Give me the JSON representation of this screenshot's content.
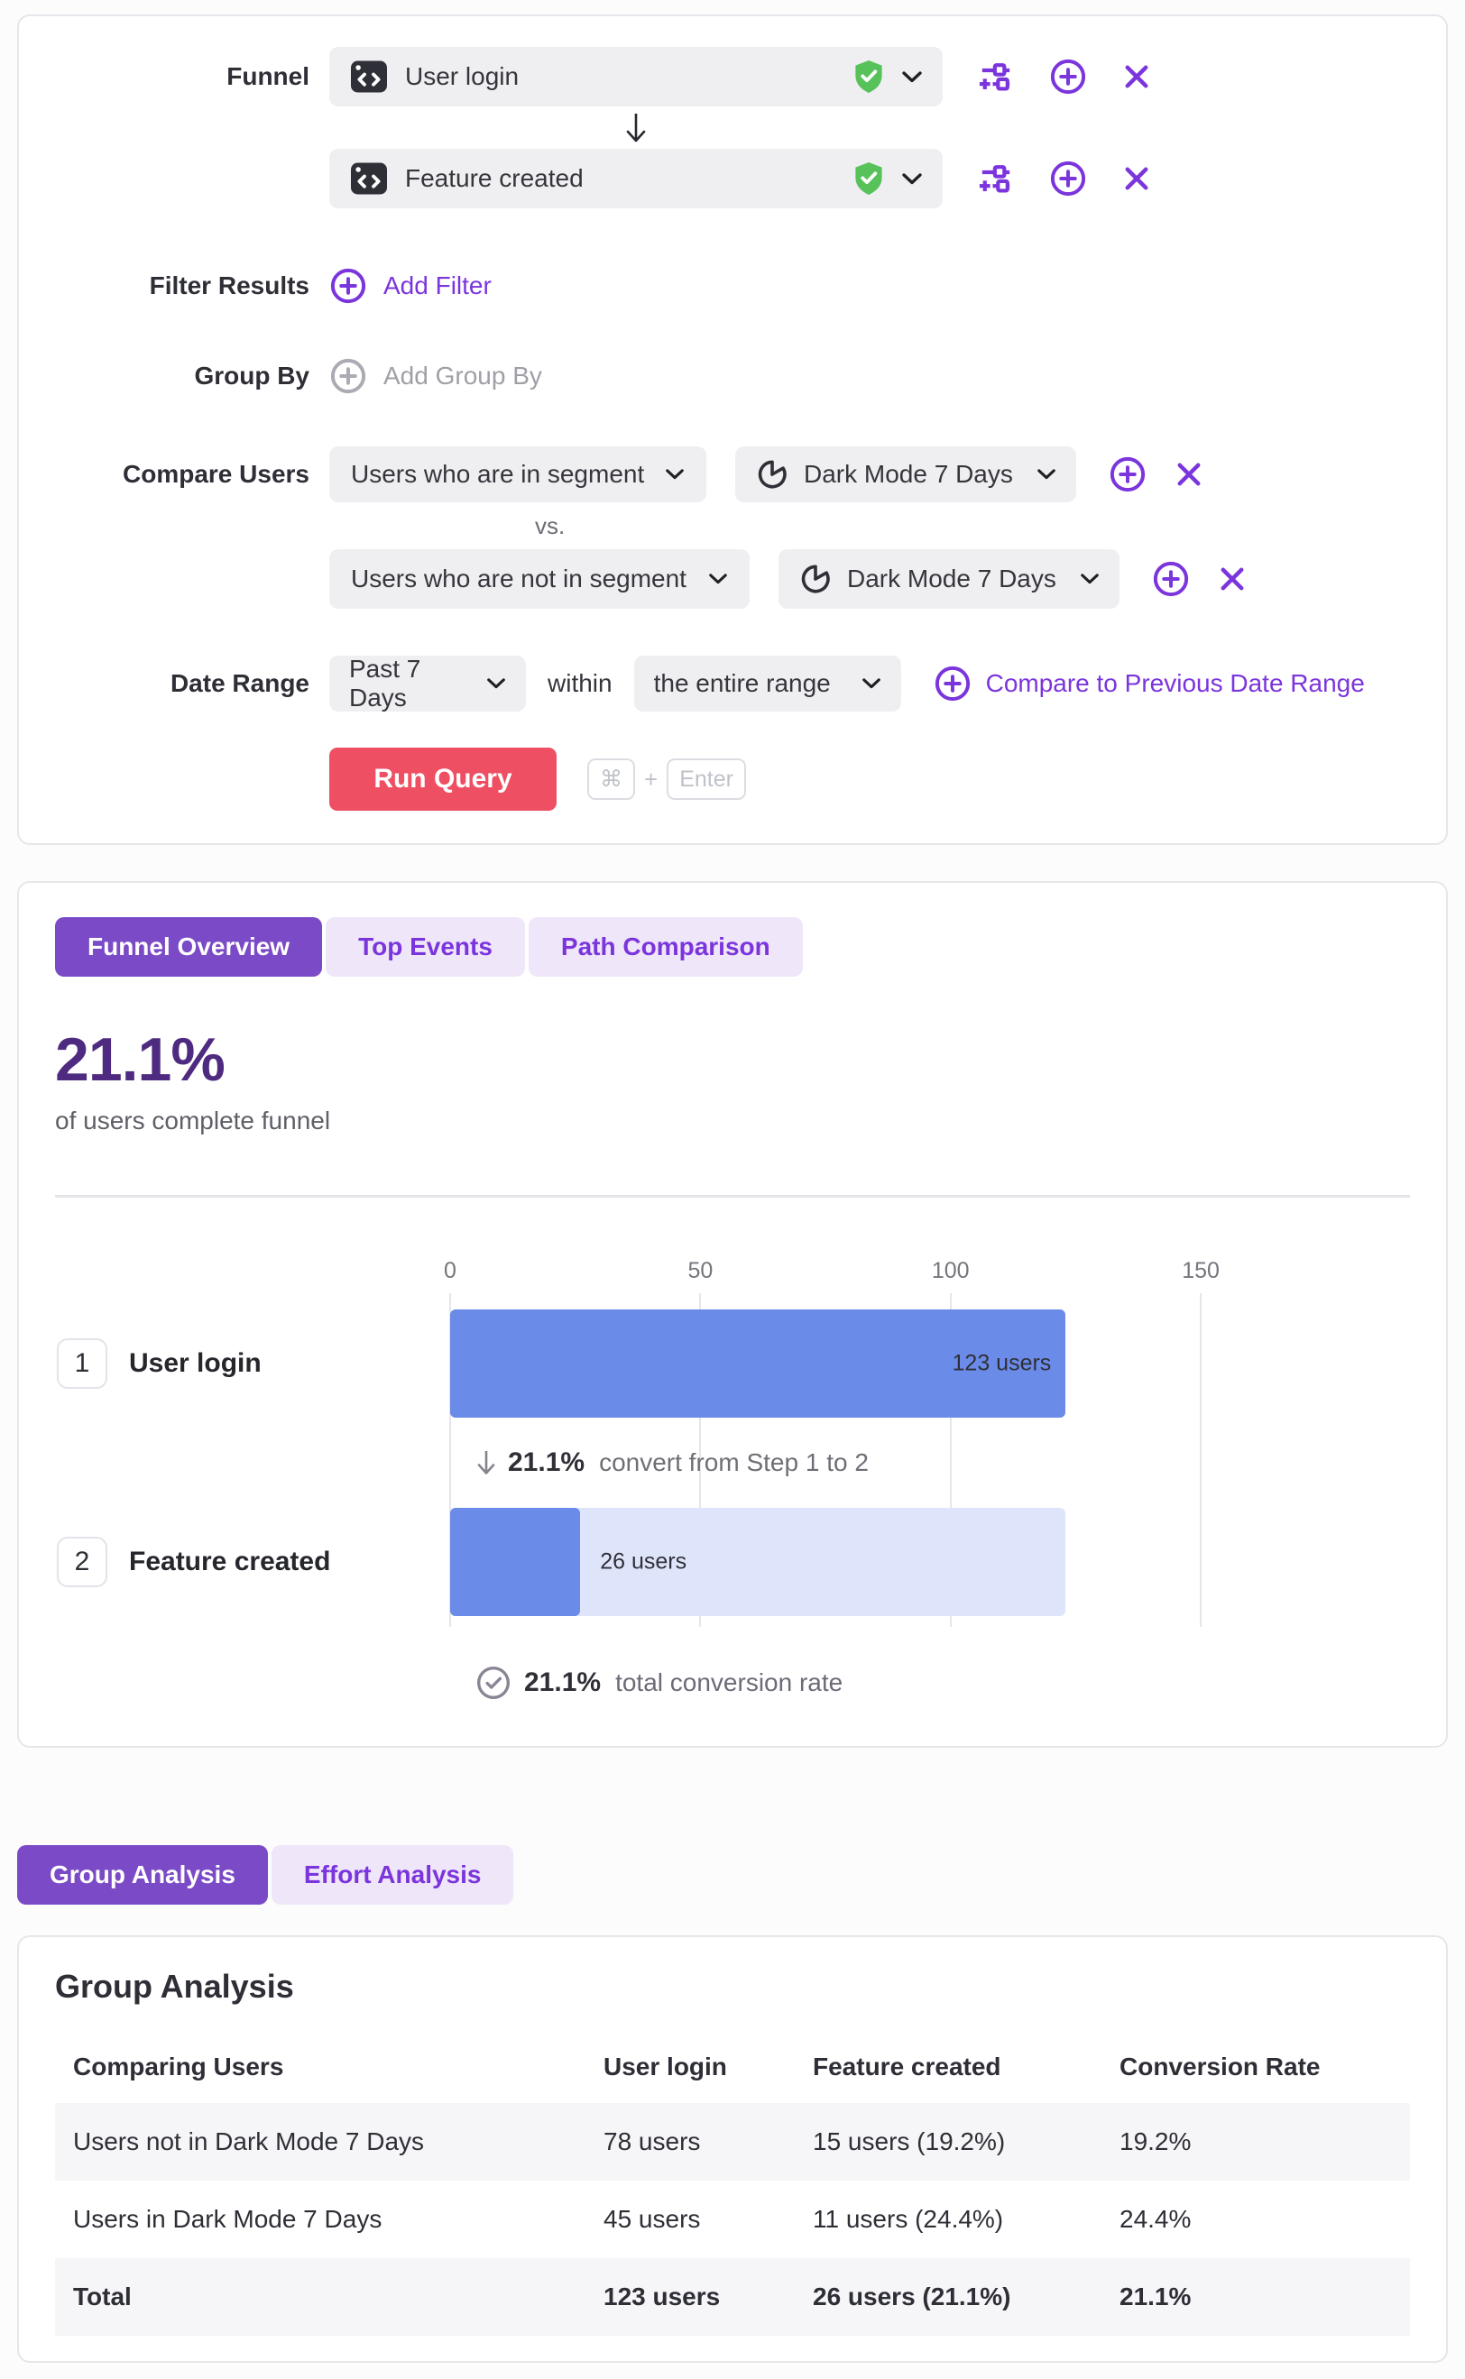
{
  "colors": {
    "accent_purple": "#7B35DC",
    "tab_active_purple": "#7B4AC6",
    "tab_inactive_bg": "#EFE6F9",
    "headline_purple": "#4E2B80",
    "bar_blue": "#6A8BE8",
    "bar_track_blue": "#DEE5FB",
    "run_button_red": "#EE4F63",
    "verified_green": "#57C259",
    "page_bg": "#FCFCFD"
  },
  "query_builder": {
    "funnel_label": "Funnel",
    "steps": [
      {
        "name": "User login"
      },
      {
        "name": "Feature created"
      }
    ],
    "filter_results": {
      "label": "Filter Results",
      "add_label": "Add Filter"
    },
    "group_by": {
      "label": "Group By",
      "add_label": "Add Group By"
    },
    "compare_users": {
      "label": "Compare Users",
      "vs_label": "vs.",
      "rows": [
        {
          "segment_type": "Users who are in segment",
          "segment": "Dark Mode 7 Days"
        },
        {
          "segment_type": "Users who are not in segment",
          "segment": "Dark Mode 7 Days"
        }
      ]
    },
    "date_range": {
      "label": "Date Range",
      "range": "Past 7 Days",
      "within_label": "within",
      "window": "the entire range",
      "compare_link": "Compare to Previous Date Range"
    },
    "run_button_label": "Run Query",
    "shortcut": {
      "meta": "⌘",
      "plus": "+",
      "enter": "Enter"
    }
  },
  "overview": {
    "tabs": [
      {
        "label": "Funnel Overview",
        "active": true
      },
      {
        "label": "Top Events",
        "active": false
      },
      {
        "label": "Path Comparison",
        "active": false
      }
    ],
    "headline": "21.1%",
    "subtext": "of users complete funnel",
    "chart_data": {
      "type": "bar",
      "orientation": "horizontal",
      "categories": [
        "User login",
        "Feature created"
      ],
      "step_numbers": [
        "1",
        "2"
      ],
      "values": [
        123,
        26
      ],
      "value_labels": [
        "123 users",
        "26 users"
      ],
      "ticks": [
        0,
        50,
        100,
        150
      ],
      "xlim": [
        0,
        190
      ],
      "grid": true,
      "legend": false,
      "step_conversion": {
        "pct": "21.1%",
        "text": "convert from Step 1 to 2"
      },
      "total_conversion": {
        "pct": "21.1%",
        "text": "total conversion rate"
      }
    }
  },
  "analysis_tabs": [
    {
      "label": "Group Analysis",
      "active": true
    },
    {
      "label": "Effort Analysis",
      "active": false
    }
  ],
  "group_analysis": {
    "title": "Group Analysis",
    "columns": [
      "Comparing Users",
      "User login",
      "Feature created",
      "Conversion Rate"
    ],
    "rows": [
      [
        "Users not in Dark Mode 7 Days",
        "78 users",
        "15 users (19.2%)",
        "19.2%"
      ],
      [
        "Users in Dark Mode 7 Days",
        "45 users",
        "11 users (24.4%)",
        "24.4%"
      ],
      [
        "Total",
        "123 users",
        "26 users (21.1%)",
        "21.1%"
      ]
    ]
  }
}
